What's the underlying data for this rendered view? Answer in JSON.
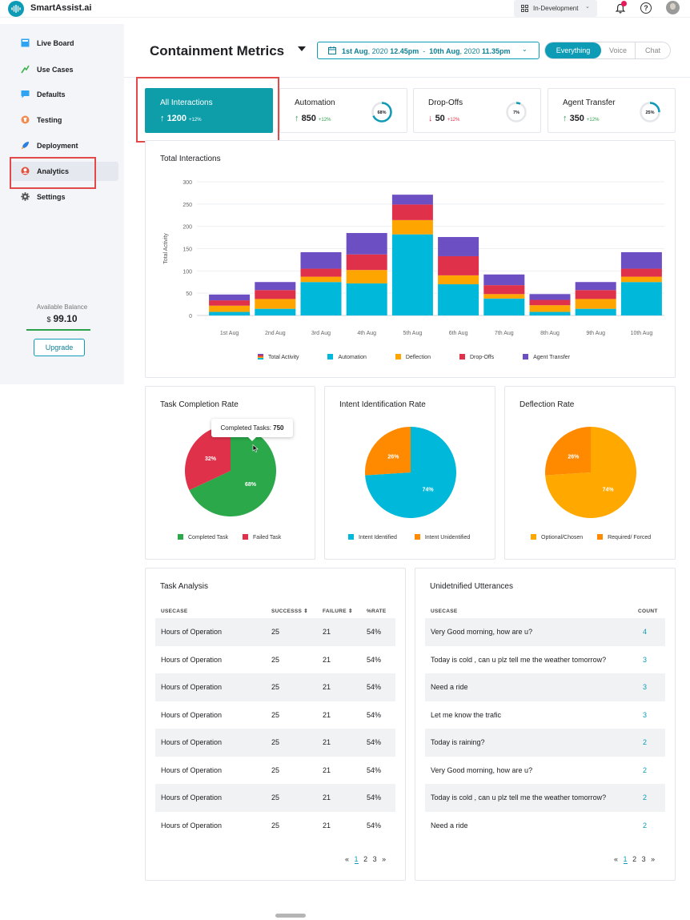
{
  "app": {
    "name": "SmartAssist.ai"
  },
  "topbar": {
    "environment": "In-Development"
  },
  "sidebar": {
    "items": [
      {
        "label": "Live Board",
        "icon": "live-board-icon"
      },
      {
        "label": "Use Cases",
        "icon": "use-cases-icon"
      },
      {
        "label": "Defaults",
        "icon": "defaults-icon"
      },
      {
        "label": "Testing",
        "icon": "testing-icon"
      },
      {
        "label": "Deployment",
        "icon": "deployment-icon"
      },
      {
        "label": "Analytics",
        "icon": "analytics-icon"
      },
      {
        "label": "Settings",
        "icon": "gear-icon"
      }
    ],
    "active": "Analytics",
    "balance_label": "Available Balance",
    "balance_currency": "$",
    "balance_value": "99.10",
    "upgrade_label": "Upgrade"
  },
  "header": {
    "title": "Containment Metrics",
    "date_start": "1st Aug",
    "date_start_year": ", 2020",
    "date_start_time": "12.45pm",
    "date_sep": "-",
    "date_end": "10th Aug",
    "date_end_year": ", 2020",
    "date_end_time": "11.35pm",
    "tabs": [
      "Everything",
      "Voice",
      "Chat"
    ],
    "active_tab": "Everything"
  },
  "kpis": [
    {
      "title": "All Interactions",
      "arrow": "↑",
      "value": "1200",
      "delta": "+12%"
    },
    {
      "title": "Automation",
      "arrow": "↑",
      "value": "850",
      "delta": "+12%",
      "ring": "68%",
      "ring_fraction": 0.68
    },
    {
      "title": "Drop-Offs",
      "arrow": "↓",
      "value": "50",
      "delta": "+12%",
      "ring": "7%",
      "ring_fraction": 0.07
    },
    {
      "title": "Agent Transfer",
      "arrow": "↑",
      "value": "350",
      "delta": "+12%",
      "ring": "25%",
      "ring_fraction": 0.25
    }
  ],
  "colors": {
    "accent": "#0d9bb5",
    "automation": "#00b8d9",
    "deflection": "#ffa500",
    "dropoffs": "#e0314b",
    "agent_transfer": "#6c4fc2",
    "completed": "#2aa84a",
    "failed": "#e0314b",
    "unidentified": "#ff8a00",
    "required": "#ff8a00",
    "optional": "#ffa800",
    "positive": "#2aa14a",
    "negative": "#e0314b"
  },
  "chart_data": [
    {
      "type": "bar",
      "title": "Total Interactions",
      "ylabel": "Total Activity",
      "xlabel": "",
      "stacked": true,
      "ylim": [
        0,
        300
      ],
      "yticks": [
        0,
        50,
        100,
        150,
        200,
        250,
        300
      ],
      "categories": [
        "1st Aug",
        "2nd Aug",
        "3rd Aug",
        "4th Aug",
        "5th Aug",
        "6th Aug",
        "7th Aug",
        "8th Aug",
        "9th Aug",
        "10th Aug"
      ],
      "series": [
        {
          "name": "Automation",
          "values": [
            8,
            15,
            75,
            72,
            182,
            70,
            38,
            8,
            15,
            75
          ]
        },
        {
          "name": "Deflection",
          "values": [
            14,
            22,
            12,
            30,
            32,
            20,
            10,
            15,
            22,
            12
          ]
        },
        {
          "name": "Drop-Offs",
          "values": [
            12,
            20,
            18,
            35,
            35,
            43,
            20,
            12,
            20,
            18
          ]
        },
        {
          "name": "Agent Transfer",
          "values": [
            13,
            18,
            37,
            48,
            22,
            43,
            24,
            13,
            18,
            37
          ]
        }
      ],
      "legend": [
        "Total Activity",
        "Automation",
        "Deflection",
        "Drop-Offs",
        "Agent Transfer"
      ],
      "legend_position": "bottom"
    },
    {
      "type": "pie",
      "title": "Task Completion Rate",
      "labels": [
        "Completed Task",
        "Failed Task"
      ],
      "values": [
        68,
        32
      ],
      "value_labels": [
        "68%",
        "32%"
      ],
      "tooltip_label": "Completed Tasks:",
      "tooltip_value": "750"
    },
    {
      "type": "pie",
      "title": "Intent Identification Rate",
      "labels": [
        "Intent Identified",
        "Intent Unidentified"
      ],
      "values": [
        74,
        26
      ],
      "value_labels": [
        "74%",
        "26%"
      ]
    },
    {
      "type": "pie",
      "title": "Deflection Rate",
      "labels": [
        "Optional/Chosen",
        "Required/ Forced"
      ],
      "values": [
        74,
        26
      ],
      "value_labels": [
        "74%",
        "26%"
      ]
    }
  ],
  "task_analysis": {
    "title": "Task Analysis",
    "columns": [
      "USECASE",
      "SUCCESSS",
      "FAILURE",
      "%RATE"
    ],
    "rows": [
      [
        "Hours of Operation",
        "25",
        "21",
        "54%"
      ],
      [
        "Hours of Operation",
        "25",
        "21",
        "54%"
      ],
      [
        "Hours of Operation",
        "25",
        "21",
        "54%"
      ],
      [
        "Hours of Operation",
        "25",
        "21",
        "54%"
      ],
      [
        "Hours of Operation",
        "25",
        "21",
        "54%"
      ],
      [
        "Hours of Operation",
        "25",
        "21",
        "54%"
      ],
      [
        "Hours of Operation",
        "25",
        "21",
        "54%"
      ],
      [
        "Hours of Operation",
        "25",
        "21",
        "54%"
      ]
    ],
    "pager": {
      "prev": "«",
      "pages": [
        "1",
        "2",
        "3"
      ],
      "current": "1",
      "next": "»"
    }
  },
  "utterances": {
    "title": "Unidetnified Utterances",
    "columns": [
      "USECASE",
      "COUNT"
    ],
    "rows": [
      [
        "Very Good morning, how are u?",
        "4"
      ],
      [
        "Today is cold , can u plz tell me the weather tomorrow?",
        "3"
      ],
      [
        "Need a ride",
        "3"
      ],
      [
        "Let me know the trafic",
        "3"
      ],
      [
        "Today is raining?",
        "2"
      ],
      [
        "Very Good morning, how are u?",
        "2"
      ],
      [
        "Today is cold , can u plz tell me the weather tomorrow?",
        "2"
      ],
      [
        "Need a ride",
        "2"
      ]
    ],
    "pager": {
      "prev": "«",
      "pages": [
        "1",
        "2",
        "3"
      ],
      "current": "1",
      "next": "»"
    }
  }
}
